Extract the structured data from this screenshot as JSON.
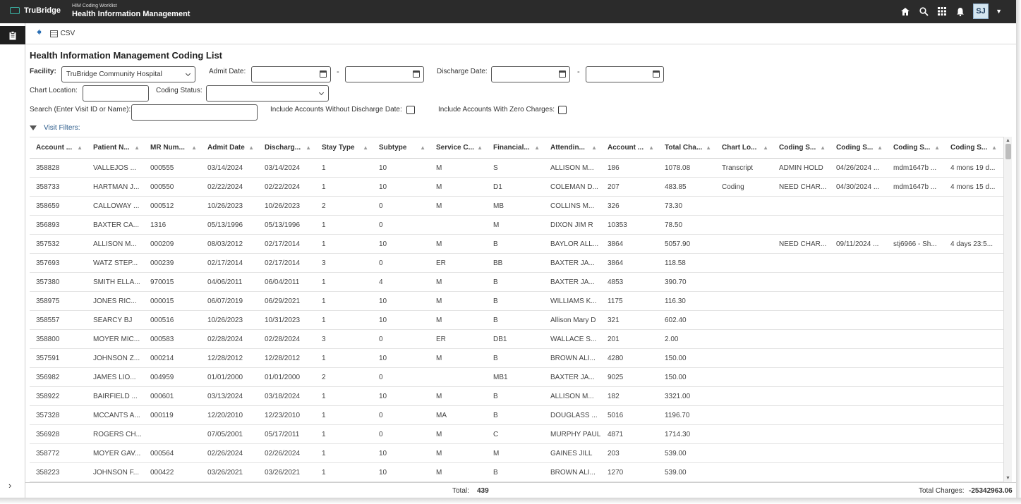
{
  "header": {
    "brand": "TruBridge",
    "app_subtitle": "HIM Coding Worklist",
    "app_title": "Health Information Management",
    "avatar_initials": "SJ",
    "accent_color": "#3bb3a5"
  },
  "toolbar": {
    "csv_label": "CSV"
  },
  "page": {
    "title": "Health Information Management Coding List"
  },
  "filters": {
    "facility_label": "Facility:",
    "facility_value": "TruBridge Community Hospital",
    "admit_date_label": "Admit Date:",
    "discharge_date_label": "Discharge Date:",
    "range_separator": "-",
    "chart_location_label": "Chart Location:",
    "coding_status_label": "Coding Status:",
    "search_label": "Search (Enter Visit ID or Name):",
    "include_no_discharge_label": "Include Accounts Without Discharge Date:",
    "include_zero_charges_label": "Include Accounts With Zero Charges:",
    "visit_filters_label": "Visit Filters:"
  },
  "grid": {
    "columns": [
      "Account ...",
      "Patient N...",
      "MR Num...",
      "Admit Date",
      "Discharg...",
      "Stay Type",
      "Subtype",
      "Service C...",
      "Financial...",
      "Attendin...",
      "Account ...",
      "Total Cha...",
      "Chart Lo...",
      "Coding S...",
      "Coding S...",
      "Coding S...",
      "Coding S..."
    ],
    "rows": [
      [
        "358828",
        "VALLEJOS ...",
        "000555",
        "03/14/2024",
        "03/14/2024",
        "1",
        "10",
        "M",
        "S",
        "ALLISON M...",
        "186",
        "1078.08",
        "Transcript",
        "ADMIN HOLD",
        "04/26/2024 ...",
        "mdm1647b ...",
        "4 mons 19 d..."
      ],
      [
        "358733",
        "HARTMAN J...",
        "000550",
        "02/22/2024",
        "02/22/2024",
        "1",
        "10",
        "M",
        "D1",
        "COLEMAN D...",
        "207",
        "483.85",
        "Coding",
        "NEED CHAR...",
        "04/30/2024 ...",
        "mdm1647b ...",
        "4 mons 15 d..."
      ],
      [
        "358659",
        "CALLOWAY ...",
        "000512",
        "10/26/2023",
        "10/26/2023",
        "2",
        "0",
        "M",
        "MB",
        "COLLINS M...",
        "326",
        "73.30",
        "",
        "",
        "",
        "",
        ""
      ],
      [
        "356893",
        "BAXTER CA...",
        "1316",
        "05/13/1996",
        "05/13/1996",
        "1",
        "0",
        "",
        "M",
        "DIXON JIM R",
        "10353",
        "78.50",
        "",
        "",
        "",
        "",
        ""
      ],
      [
        "357532",
        "ALLISON M...",
        "000209",
        "08/03/2012",
        "02/17/2014",
        "1",
        "10",
        "M",
        "B",
        "BAYLOR ALL...",
        "3864",
        "5057.90",
        "",
        "NEED CHAR...",
        "09/11/2024 ...",
        "stj6966 - Sh...",
        "4 days 23:5..."
      ],
      [
        "357693",
        "WATZ STEP...",
        "000239",
        "02/17/2014",
        "02/17/2014",
        "3",
        "0",
        "ER",
        "BB",
        "BAXTER JA...",
        "3864",
        "118.58",
        "",
        "",
        "",
        "",
        ""
      ],
      [
        "357380",
        "SMITH ELLA...",
        "970015",
        "04/06/2011",
        "06/04/2011",
        "1",
        "4",
        "M",
        "B",
        "BAXTER JA...",
        "4853",
        "390.70",
        "",
        "",
        "",
        "",
        ""
      ],
      [
        "358975",
        "JONES RIC...",
        "000015",
        "06/07/2019",
        "06/29/2021",
        "1",
        "10",
        "M",
        "B",
        "WILLIAMS K...",
        "1175",
        "116.30",
        "",
        "",
        "",
        "",
        ""
      ],
      [
        "358557",
        "SEARCY BJ",
        "000516",
        "10/26/2023",
        "10/31/2023",
        "1",
        "10",
        "M",
        "B",
        "Allison Mary D",
        "321",
        "602.40",
        "",
        "",
        "",
        "",
        ""
      ],
      [
        "358800",
        "MOYER MIC...",
        "000583",
        "02/28/2024",
        "02/28/2024",
        "3",
        "0",
        "ER",
        "DB1",
        "WALLACE S...",
        "201",
        "2.00",
        "",
        "",
        "",
        "",
        ""
      ],
      [
        "357591",
        "JOHNSON Z...",
        "000214",
        "12/28/2012",
        "12/28/2012",
        "1",
        "10",
        "M",
        "B",
        "BROWN ALI...",
        "4280",
        "150.00",
        "",
        "",
        "",
        "",
        ""
      ],
      [
        "356982",
        "JAMES LIO...",
        "004959",
        "01/01/2000",
        "01/01/2000",
        "2",
        "0",
        "",
        "MB1",
        "BAXTER JA...",
        "9025",
        "150.00",
        "",
        "",
        "",
        "",
        ""
      ],
      [
        "358922",
        "BAIRFIELD ...",
        "000601",
        "03/13/2024",
        "03/18/2024",
        "1",
        "10",
        "M",
        "B",
        "ALLISON M...",
        "182",
        "3321.00",
        "",
        "",
        "",
        "",
        ""
      ],
      [
        "357328",
        "MCCANTS A...",
        "000119",
        "12/20/2010",
        "12/23/2010",
        "1",
        "0",
        "MA",
        "B",
        "DOUGLASS ...",
        "5016",
        "1196.70",
        "",
        "",
        "",
        "",
        ""
      ],
      [
        "356928",
        "ROGERS CH...",
        "",
        "07/05/2001",
        "05/17/2011",
        "1",
        "0",
        "M",
        "C",
        "MURPHY PAUL",
        "4871",
        "1714.30",
        "",
        "",
        "",
        "",
        ""
      ],
      [
        "358772",
        "MOYER GAV...",
        "000564",
        "02/26/2024",
        "02/26/2024",
        "1",
        "10",
        "M",
        "M",
        "GAINES JILL",
        "203",
        "539.00",
        "",
        "",
        "",
        "",
        ""
      ],
      [
        "358223",
        "JOHNSON F...",
        "000422",
        "03/26/2021",
        "03/26/2021",
        "1",
        "10",
        "M",
        "B",
        "BROWN ALI...",
        "1270",
        "539.00",
        "",
        "",
        "",
        "",
        ""
      ]
    ]
  },
  "footer": {
    "total_label": "Total:",
    "total_value": "439",
    "charges_label": "Total Charges:",
    "charges_value": "-25342963.06"
  }
}
